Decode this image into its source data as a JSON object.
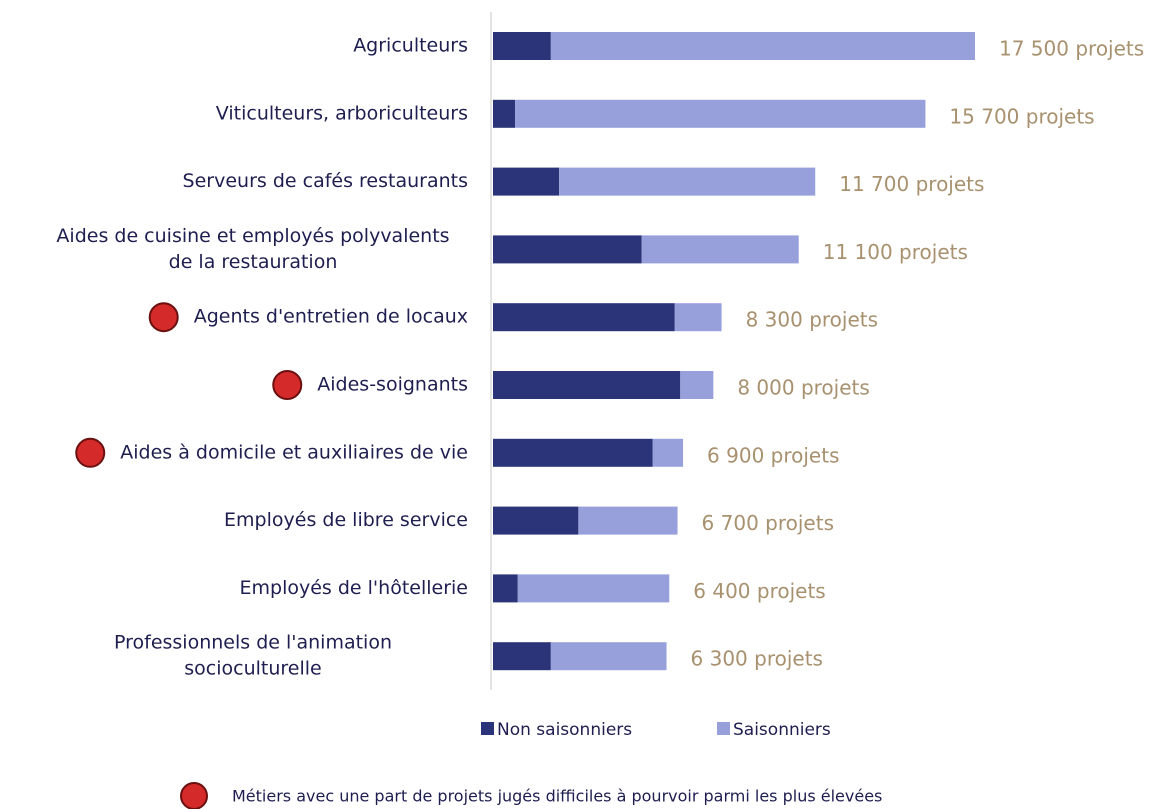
{
  "chart_data": {
    "type": "stacked-bar-horizontal",
    "categories": [
      [
        "Agriculteurs"
      ],
      [
        "Viticulteurs, arboriculteurs"
      ],
      [
        "Serveurs de cafés restaurants"
      ],
      [
        "Aides de cuisine et employés polyvalents",
        "de la restauration"
      ],
      [
        "Agents d'entretien de locaux"
      ],
      [
        "Aides-soignants"
      ],
      [
        "Aides à domicile et auxiliaires de vie"
      ],
      [
        "Employés de libre service"
      ],
      [
        "Employés de l'hôtellerie"
      ],
      [
        "Professionnels de l'animation",
        "socioculturelle"
      ]
    ],
    "series": [
      {
        "name": "Non saisonniers",
        "color": "#2b3478",
        "values": [
          2100,
          800,
          2400,
          5400,
          6600,
          6800,
          5800,
          3100,
          900,
          2100
        ]
      },
      {
        "name": "Saisonniers",
        "color": "#97a0da",
        "values": [
          15400,
          14900,
          9300,
          5700,
          1700,
          1200,
          1100,
          3600,
          5500,
          4200
        ]
      }
    ],
    "totals": [
      17500,
      15700,
      11700,
      11100,
      8300,
      8000,
      6900,
      6700,
      6400,
      6300
    ],
    "total_labels": [
      "17 500 projets",
      "15 700 projets",
      "11 700 projets",
      "11 100 projets",
      "8 300 projets",
      "8 000 projets",
      "6 900 projets",
      "6 700 projets",
      "6 400 projets",
      "6 300 projets"
    ],
    "xlim": [
      0,
      17500
    ],
    "highlight": [
      false,
      false,
      false,
      false,
      true,
      true,
      true,
      false,
      false,
      false
    ],
    "highlight_color": "#d42a2a",
    "note": "Métiers avec une part de projets jugés difficiles à pourvoir parmi les plus élevées"
  }
}
